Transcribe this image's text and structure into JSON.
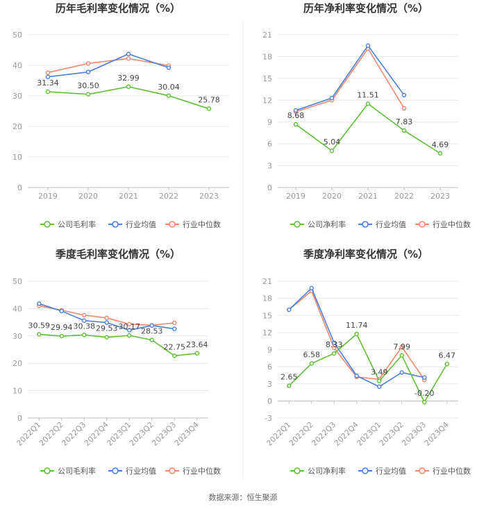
{
  "source": "数据来源：恒生聚源",
  "legend": {
    "company_gross": "公司毛利率",
    "company_net": "公司净利率",
    "industry_avg": "行业均值",
    "industry_median": "行业中位数"
  },
  "colors": {
    "company": "#5dbf33",
    "avg": "#4a7ee3",
    "median": "#f2876b"
  },
  "chart_data": [
    {
      "type": "line",
      "title": "历年毛利率变化情况（%）",
      "categories": [
        "2019",
        "2020",
        "2021",
        "2022",
        "2023"
      ],
      "ylim": [
        0,
        50
      ],
      "yticks": [
        0,
        10,
        20,
        30,
        40,
        50
      ],
      "series": [
        {
          "name": "公司毛利率",
          "key": "company",
          "values": [
            31.34,
            30.5,
            32.99,
            30.04,
            25.78
          ],
          "labels": [
            "31.34",
            "30.50",
            "32.99",
            "30.04",
            "25.78"
          ]
        },
        {
          "name": "行业均值",
          "key": "avg",
          "values": [
            36.2,
            37.8,
            43.7,
            39.2,
            null
          ]
        },
        {
          "name": "行业中位数",
          "key": "median",
          "values": [
            37.6,
            40.6,
            42.2,
            39.9,
            null
          ]
        }
      ]
    },
    {
      "type": "line",
      "title": "历年净利率变化情况（%）",
      "categories": [
        "2019",
        "2020",
        "2021",
        "2022",
        "2023"
      ],
      "ylim": [
        0,
        21
      ],
      "yticks": [
        0,
        3,
        6,
        9,
        12,
        15,
        18,
        21
      ],
      "series": [
        {
          "name": "公司净利率",
          "key": "company",
          "values": [
            8.68,
            5.04,
            11.51,
            7.83,
            4.69
          ],
          "labels": [
            "8.68",
            "5.04",
            "11.51",
            "7.83",
            "4.69"
          ]
        },
        {
          "name": "行业均值",
          "key": "avg",
          "values": [
            10.6,
            12.3,
            19.5,
            12.7,
            null
          ]
        },
        {
          "name": "行业中位数",
          "key": "median",
          "values": [
            10.4,
            12.0,
            19.1,
            10.9,
            null
          ]
        }
      ]
    },
    {
      "type": "line",
      "title": "季度毛利率变化情况（%）",
      "categories": [
        "2022Q1",
        "2022Q2",
        "2022Q3",
        "2022Q4",
        "2023Q1",
        "2023Q2",
        "2023Q3",
        "2023Q4"
      ],
      "ylim": [
        0,
        50
      ],
      "yticks": [
        0,
        10,
        20,
        30,
        40,
        50
      ],
      "series": [
        {
          "name": "公司毛利率",
          "key": "company",
          "values": [
            30.59,
            29.94,
            30.38,
            29.53,
            30.17,
            28.53,
            22.75,
            23.64
          ],
          "labels": [
            "30.59",
            "29.94",
            "30.38",
            "29.53",
            "30.17",
            "28.53",
            "22.75",
            "23.64"
          ]
        },
        {
          "name": "行业均值",
          "key": "avg",
          "values": [
            41.8,
            39.1,
            35.6,
            34.9,
            32.1,
            33.8,
            32.6,
            null
          ]
        },
        {
          "name": "行业中位数",
          "key": "median",
          "values": [
            41.0,
            39.4,
            37.6,
            36.6,
            34.3,
            33.9,
            34.8,
            null
          ]
        }
      ]
    },
    {
      "type": "line",
      "title": "季度净利率变化情况（%）",
      "categories": [
        "2022Q1",
        "2022Q2",
        "2022Q3",
        "2022Q4",
        "2023Q1",
        "2023Q2",
        "2023Q3",
        "2023Q4"
      ],
      "ylim": [
        -3,
        21
      ],
      "yticks": [
        -3,
        0,
        3,
        6,
        9,
        12,
        15,
        18,
        21
      ],
      "series": [
        {
          "name": "公司净利率",
          "key": "company",
          "values": [
            2.65,
            6.58,
            8.33,
            11.74,
            3.49,
            7.99,
            -0.2,
            6.47
          ],
          "labels": [
            "2.65",
            "6.58",
            "8.33",
            "11.74",
            "3.49",
            "7.99",
            "-0.20",
            "6.47"
          ]
        },
        {
          "name": "行业均值",
          "key": "avg",
          "values": [
            16.0,
            19.8,
            10.2,
            4.4,
            2.5,
            5.0,
            4.1,
            null
          ]
        },
        {
          "name": "行业中位数",
          "key": "median",
          "values": [
            16.0,
            19.3,
            9.3,
            4.2,
            3.8,
            9.5,
            3.7,
            null
          ]
        }
      ]
    }
  ]
}
